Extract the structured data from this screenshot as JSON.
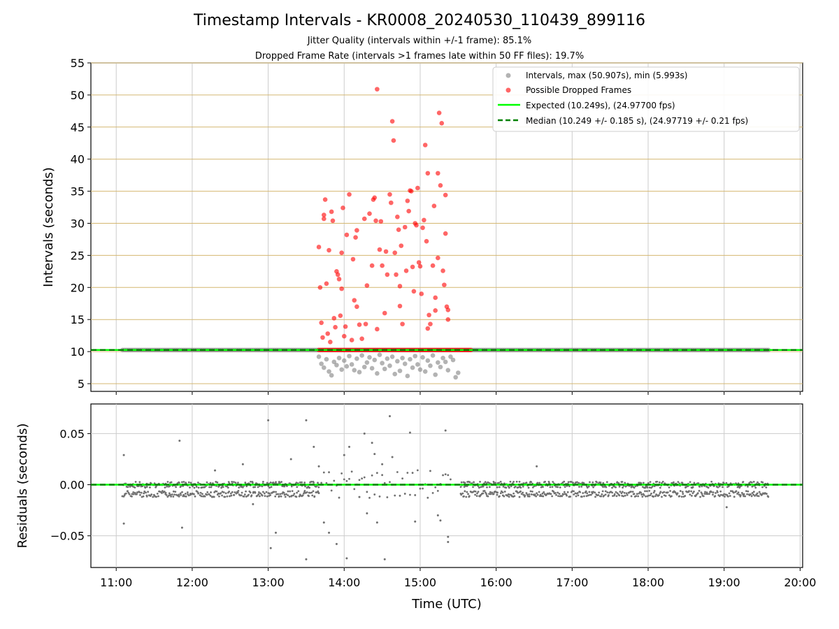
{
  "title": "Timestamp Intervals - KR0008_20240530_110439_899116",
  "subtitle_1": "Jitter Quality (intervals within +/-1 frame): 85.1%",
  "subtitle_2": "Dropped Frame Rate (intervals >1 frames late within 50 FF files): 19.7%",
  "colors": {
    "intervals": "#808080",
    "dropped": "#ff0000",
    "expected": "#00ff00",
    "median": "#008000",
    "hgrid_top": "#d4b770",
    "grid": "#cccccc"
  },
  "chart_data": [
    {
      "type": "scatter",
      "ylabel": "Intervals (seconds)",
      "xlim": [
        "10:40",
        "20:02"
      ],
      "ylim": [
        3.8,
        55
      ],
      "yticks": [
        "5",
        "10",
        "15",
        "20",
        "25",
        "30",
        "35",
        "40",
        "45",
        "50",
        "55"
      ],
      "grid": true,
      "legend_position": "top-right",
      "legend": [
        "Intervals, max (50.907s), min (5.993s)",
        "Possible Dropped Frames",
        "Expected (10.249s), (24.97700 fps)",
        "Median (10.249 +/- 0.185 s), (24.97719 +/- 0.21 fps)"
      ],
      "expected_interval": 10.249,
      "median_interval": 10.249,
      "max_interval": 50.907,
      "min_interval": 5.993,
      "series": [
        {
          "name": "Intervals, max (50.907s), min (5.993s)",
          "note_constant_band": {
            "from": "11:05",
            "to": "19:35",
            "value": 10.249
          },
          "points": [
            [
              "13:40",
              9.2
            ],
            [
              "13:42",
              8.1
            ],
            [
              "13:44",
              7.5
            ],
            [
              "13:46",
              8.8
            ],
            [
              "13:48",
              6.9
            ],
            [
              "13:50",
              6.3
            ],
            [
              "13:52",
              8.4
            ],
            [
              "13:54",
              7.9
            ],
            [
              "13:56",
              9.0
            ],
            [
              "13:58",
              7.2
            ],
            [
              "14:00",
              8.6
            ],
            [
              "14:02",
              7.7
            ],
            [
              "14:04",
              9.3
            ],
            [
              "14:06",
              8.0
            ],
            [
              "14:08",
              7.1
            ],
            [
              "14:10",
              8.9
            ],
            [
              "14:12",
              6.8
            ],
            [
              "14:14",
              9.4
            ],
            [
              "14:16",
              7.6
            ],
            [
              "14:18",
              8.3
            ],
            [
              "14:20",
              9.1
            ],
            [
              "14:22",
              7.4
            ],
            [
              "14:24",
              8.7
            ],
            [
              "14:26",
              6.6
            ],
            [
              "14:28",
              9.5
            ],
            [
              "14:30",
              8.2
            ],
            [
              "14:32",
              7.3
            ],
            [
              "14:34",
              8.9
            ],
            [
              "14:36",
              7.8
            ],
            [
              "14:38",
              9.2
            ],
            [
              "14:40",
              6.5
            ],
            [
              "14:42",
              8.5
            ],
            [
              "14:44",
              7.0
            ],
            [
              "14:46",
              9.0
            ],
            [
              "14:48",
              8.1
            ],
            [
              "14:50",
              6.2
            ],
            [
              "14:52",
              8.8
            ],
            [
              "14:54",
              7.5
            ],
            [
              "14:56",
              9.3
            ],
            [
              "14:58",
              8.0
            ],
            [
              "15:00",
              7.2
            ],
            [
              "15:02",
              9.1
            ],
            [
              "15:04",
              6.9
            ],
            [
              "15:06",
              8.6
            ],
            [
              "15:08",
              7.8
            ],
            [
              "15:10",
              9.4
            ],
            [
              "15:12",
              6.4
            ],
            [
              "15:14",
              8.3
            ],
            [
              "15:16",
              7.6
            ],
            [
              "15:18",
              9.0
            ],
            [
              "15:20",
              8.4
            ],
            [
              "15:22",
              7.1
            ],
            [
              "15:24",
              9.2
            ],
            [
              "15:26",
              8.7
            ],
            [
              "15:28",
              6.0
            ],
            [
              "15:30",
              6.7
            ]
          ]
        },
        {
          "name": "Possible Dropped Frames",
          "note_constant_band": {
            "from": "13:40",
            "to": "15:40",
            "value": 10.25
          },
          "points": [
            [
              "13:40",
              26.3
            ],
            [
              "13:41",
              20.0
            ],
            [
              "13:42",
              14.5
            ],
            [
              "13:43",
              12.2
            ],
            [
              "13:44",
              31.3
            ],
            [
              "13:44",
              30.7
            ],
            [
              "13:45",
              33.7
            ],
            [
              "13:46",
              20.6
            ],
            [
              "13:47",
              12.8
            ],
            [
              "13:48",
              25.8
            ],
            [
              "13:49",
              11.5
            ],
            [
              "13:50",
              31.8
            ],
            [
              "13:51",
              30.4
            ],
            [
              "13:52",
              15.2
            ],
            [
              "13:53",
              13.8
            ],
            [
              "13:54",
              22.5
            ],
            [
              "13:55",
              22.0
            ],
            [
              "13:56",
              21.3
            ],
            [
              "13:57",
              15.6
            ],
            [
              "13:58",
              25.4
            ],
            [
              "13:59",
              32.4
            ],
            [
              "14:00",
              12.4
            ],
            [
              "14:01",
              13.9
            ],
            [
              "14:02",
              28.2
            ],
            [
              "14:04",
              34.5
            ],
            [
              "14:06",
              11.8
            ],
            [
              "14:07",
              24.4
            ],
            [
              "14:08",
              18.0
            ],
            [
              "14:09",
              27.8
            ],
            [
              "14:10",
              28.9
            ],
            [
              "14:12",
              14.2
            ],
            [
              "14:14",
              12.0
            ],
            [
              "14:16",
              30.7
            ],
            [
              "14:17",
              14.3
            ],
            [
              "14:18",
              20.3
            ],
            [
              "14:20",
              31.5
            ],
            [
              "14:22",
              23.4
            ],
            [
              "14:23",
              33.7
            ],
            [
              "14:24",
              34.0
            ],
            [
              "14:25",
              30.4
            ],
            [
              "14:26",
              13.5
            ],
            [
              "14:28",
              25.9
            ],
            [
              "14:29",
              30.3
            ],
            [
              "14:30",
              23.4
            ],
            [
              "14:32",
              16.0
            ],
            [
              "14:33",
              25.6
            ],
            [
              "14:34",
              22.0
            ],
            [
              "14:36",
              34.5
            ],
            [
              "14:37",
              33.2
            ],
            [
              "14:38",
              45.9
            ],
            [
              "14:39",
              42.9
            ],
            [
              "14:40",
              25.4
            ],
            [
              "14:41",
              22.0
            ],
            [
              "14:42",
              31.0
            ],
            [
              "14:43",
              29.0
            ],
            [
              "14:44",
              20.2
            ],
            [
              "14:45",
              26.5
            ],
            [
              "14:46",
              14.3
            ],
            [
              "14:48",
              29.4
            ],
            [
              "14:49",
              22.6
            ],
            [
              "14:50",
              33.5
            ],
            [
              "14:51",
              31.9
            ],
            [
              "14:52",
              35.1
            ],
            [
              "14:53",
              35.0
            ],
            [
              "14:54",
              23.2
            ],
            [
              "14:55",
              19.4
            ],
            [
              "14:56",
              30.0
            ],
            [
              "14:57",
              29.7
            ],
            [
              "14:58",
              35.5
            ],
            [
              "14:59",
              23.9
            ],
            [
              "15:00",
              23.3
            ],
            [
              "15:01",
              19.0
            ],
            [
              "15:02",
              29.3
            ],
            [
              "15:03",
              30.5
            ],
            [
              "15:04",
              42.2
            ],
            [
              "15:05",
              27.2
            ],
            [
              "15:06",
              37.8
            ],
            [
              "15:07",
              15.7
            ],
            [
              "15:08",
              14.3
            ],
            [
              "15:10",
              23.4
            ],
            [
              "15:11",
              32.7
            ],
            [
              "15:12",
              18.4
            ],
            [
              "15:14",
              37.8
            ],
            [
              "15:15",
              47.2
            ],
            [
              "15:16",
              35.9
            ],
            [
              "15:17",
              45.6
            ],
            [
              "15:18",
              22.6
            ],
            [
              "15:19",
              20.4
            ],
            [
              "15:20",
              34.4
            ],
            [
              "15:20",
              28.4
            ],
            [
              "15:21",
              17.0
            ],
            [
              "15:22",
              16.5
            ],
            [
              "15:22",
              15.0
            ],
            [
              "15:12",
              16.4
            ],
            [
              "15:14",
              24.6
            ],
            [
              "14:26",
              50.9
            ],
            [
              "14:10",
              17.0
            ],
            [
              "13:58",
              19.8
            ],
            [
              "14:44",
              17.1
            ],
            [
              "15:06",
              13.6
            ]
          ]
        },
        {
          "name": "Expected (10.249s), (24.97700 fps)",
          "type": "hline",
          "value": 10.249
        },
        {
          "name": "Median (10.249 +/- 0.185 s), (24.97719 +/- 0.21 fps)",
          "type": "hline",
          "value": 10.249
        }
      ]
    },
    {
      "type": "scatter",
      "xlabel": "Time (UTC)",
      "ylabel": "Residuals (seconds)",
      "xlim": [
        "10:40",
        "20:02"
      ],
      "ylim": [
        -0.081,
        0.079
      ],
      "yticks": [
        "−0.05",
        "0.00",
        "0.05"
      ],
      "xticks": [
        "11:00",
        "12:00",
        "13:00",
        "14:00",
        "15:00",
        "16:00",
        "17:00",
        "18:00",
        "19:00",
        "20:00"
      ],
      "grid": true,
      "reference_lines": [
        0.0
      ],
      "bands": [
        {
          "from": "11:05",
          "to": "13:40",
          "levels": [
            0.0,
            -0.009
          ]
        },
        {
          "from": "15:32",
          "to": "19:35",
          "levels": [
            0.0,
            -0.009
          ]
        }
      ],
      "outliers": [
        [
          "11:06",
          0.029
        ],
        [
          "11:06",
          -0.038
        ],
        [
          "11:50",
          0.043
        ],
        [
          "11:52",
          -0.042
        ],
        [
          "12:18",
          0.014
        ],
        [
          "12:40",
          0.02
        ],
        [
          "12:48",
          -0.019
        ],
        [
          "13:00",
          0.063
        ],
        [
          "13:02",
          -0.062
        ],
        [
          "13:06",
          -0.047
        ],
        [
          "13:18",
          0.025
        ],
        [
          "13:30",
          0.063
        ],
        [
          "13:30",
          -0.073
        ],
        [
          "13:36",
          0.037
        ],
        [
          "13:40",
          0.018
        ],
        [
          "13:44",
          -0.037
        ],
        [
          "13:48",
          -0.047
        ],
        [
          "13:54",
          -0.058
        ],
        [
          "14:00",
          0.029
        ],
        [
          "14:02",
          -0.072
        ],
        [
          "14:04",
          0.037
        ],
        [
          "14:12",
          -0.012
        ],
        [
          "14:16",
          0.05
        ],
        [
          "14:18",
          -0.028
        ],
        [
          "14:22",
          0.041
        ],
        [
          "14:24",
          0.03
        ],
        [
          "14:26",
          -0.037
        ],
        [
          "14:30",
          0.02
        ],
        [
          "14:32",
          -0.073
        ],
        [
          "14:36",
          0.067
        ],
        [
          "14:38",
          0.027
        ],
        [
          "14:52",
          0.051
        ],
        [
          "14:56",
          -0.036
        ],
        [
          "15:14",
          -0.03
        ],
        [
          "15:16",
          -0.035
        ],
        [
          "15:20",
          0.053
        ],
        [
          "15:22",
          -0.051
        ],
        [
          "15:22",
          -0.056
        ],
        [
          "16:32",
          0.018
        ],
        [
          "19:02",
          -0.022
        ]
      ]
    }
  ]
}
